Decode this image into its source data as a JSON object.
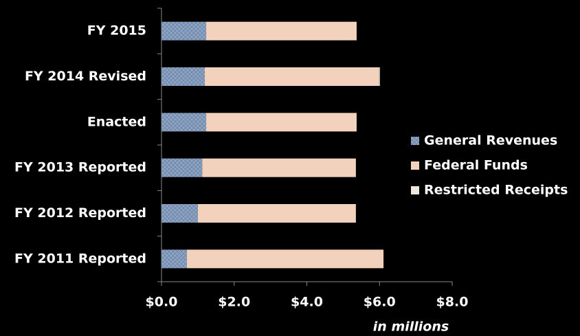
{
  "chart_data": {
    "type": "bar",
    "orientation": "horizontal",
    "stacked": true,
    "categories": [
      "FY 2015",
      "FY 2014 Revised",
      "Enacted",
      "FY 2013 Reported",
      "FY 2012 Reported",
      "FY 2011 Reported"
    ],
    "series": [
      {
        "name": "General Revenues",
        "color": "#8fa6c6",
        "values": [
          1.23,
          1.19,
          1.23,
          1.12,
          1.0,
          0.7
        ]
      },
      {
        "name": "Federal Funds",
        "color": "#f2d2bd",
        "values": [
          4.14,
          4.8,
          4.14,
          4.23,
          4.35,
          5.41
        ]
      },
      {
        "name": "Restricted Receipts",
        "color": "#eee8dc",
        "values": [
          0,
          0.02,
          0,
          0,
          0,
          0
        ]
      }
    ],
    "xlim": [
      0,
      8
    ],
    "xticks": [
      {
        "value": 0,
        "label": "$0.0"
      },
      {
        "value": 2,
        "label": "$2.0"
      },
      {
        "value": 4,
        "label": "$4.0"
      },
      {
        "value": 6,
        "label": "$6.0"
      },
      {
        "value": 8,
        "label": "$8.0"
      }
    ],
    "xlabel": "in millions",
    "legend": "right"
  }
}
